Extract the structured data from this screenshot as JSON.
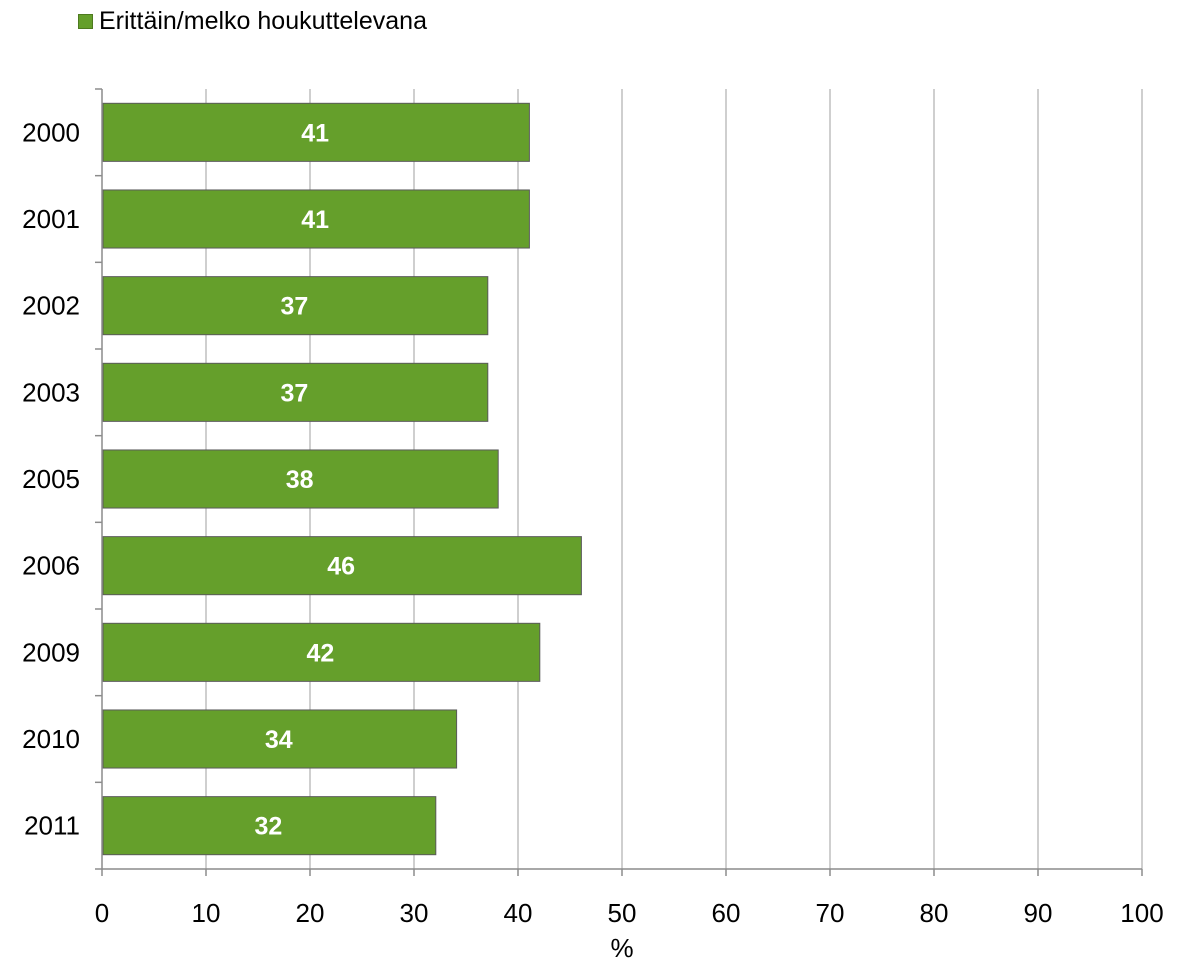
{
  "chart_data": {
    "type": "bar",
    "orientation": "horizontal",
    "categories": [
      "2000",
      "2001",
      "2002",
      "2003",
      "2005",
      "2006",
      "2009",
      "2010",
      "2011"
    ],
    "series": [
      {
        "name": "Erittäin/melko houkuttelevana",
        "values": [
          41,
          41,
          37,
          37,
          38,
          46,
          42,
          34,
          32
        ]
      }
    ],
    "xlabel": "%",
    "xlim": [
      0,
      100
    ],
    "xticks": [
      "0",
      "10",
      "20",
      "30",
      "40",
      "50",
      "60",
      "70",
      "80",
      "90",
      "100"
    ],
    "grid": true,
    "legend_position": "top-left",
    "data_labels": true
  },
  "colors": {
    "bar": "#659f2b",
    "bar_edge": "#5a5a5a",
    "grid": "#bfbfbf",
    "axis": "#8c8c8c",
    "data_label": "#ffffff"
  }
}
